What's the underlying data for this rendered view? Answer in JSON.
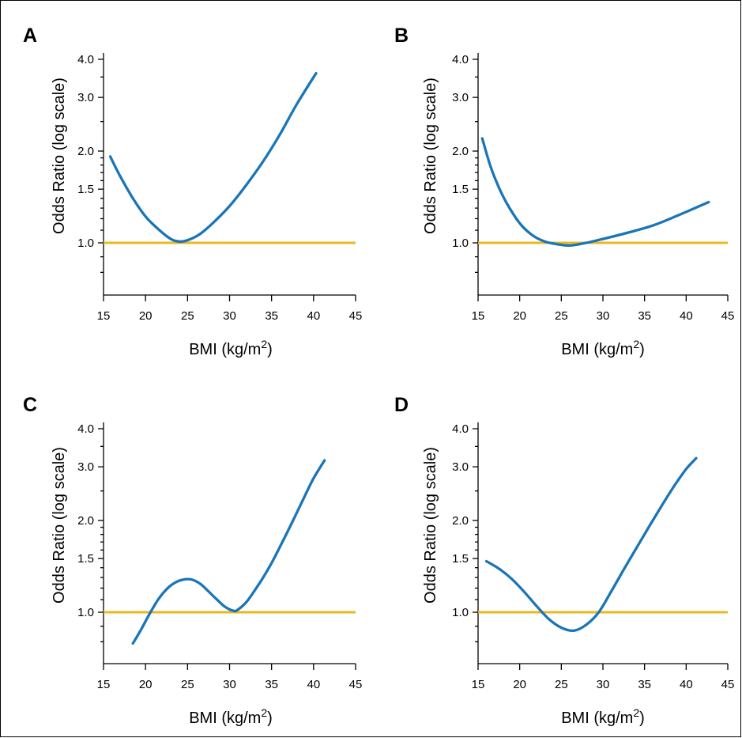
{
  "colors": {
    "curve": "#1a75b8",
    "reference": "#e8b920",
    "axis": "#000000"
  },
  "chart_data": [
    {
      "type": "line",
      "panel": "A",
      "xlabel": "BMI (kg/m2)",
      "ylabel": "Odds Ratio (log scale)",
      "xlim": [
        15,
        45
      ],
      "ylim": [
        0.7,
        4.1
      ],
      "y_scale": "log",
      "x_ticks": [
        15,
        20,
        25,
        30,
        35,
        40,
        45
      ],
      "y_ticks": [
        1.0,
        1.5,
        2.0,
        3.0,
        4.0
      ],
      "y_tick_labels": [
        "1.0",
        "1.5",
        "2.0",
        "3.0",
        "4.0"
      ],
      "reference_line": 1.0,
      "series": [
        {
          "x": [
            15.8,
            17,
            18.5,
            20,
            21.5,
            23,
            24,
            25,
            26.5,
            28,
            30,
            32,
            34,
            36,
            38,
            40.3
          ],
          "y": [
            1.92,
            1.65,
            1.4,
            1.22,
            1.11,
            1.03,
            1.01,
            1.02,
            1.07,
            1.16,
            1.32,
            1.55,
            1.85,
            2.27,
            2.85,
            3.6
          ]
        }
      ]
    },
    {
      "type": "line",
      "panel": "B",
      "xlabel": "BMI (kg/m2)",
      "ylabel": "Odds Ratio (log scale)",
      "xlim": [
        15,
        45
      ],
      "ylim": [
        0.7,
        4.1
      ],
      "y_scale": "log",
      "x_ticks": [
        15,
        20,
        25,
        30,
        35,
        40,
        45
      ],
      "y_ticks": [
        1.0,
        1.5,
        2.0,
        3.0,
        4.0
      ],
      "y_tick_labels": [
        "1.0",
        "1.5",
        "2.0",
        "3.0",
        "4.0"
      ],
      "reference_line": 1.0,
      "series": [
        {
          "x": [
            15.5,
            16.5,
            17.5,
            18.5,
            20,
            21.5,
            23,
            24.5,
            26,
            28,
            30,
            33,
            36,
            39,
            42.7
          ],
          "y": [
            2.2,
            1.78,
            1.52,
            1.34,
            1.16,
            1.06,
            1.01,
            0.99,
            0.98,
            1.0,
            1.03,
            1.08,
            1.14,
            1.23,
            1.36
          ]
        }
      ]
    },
    {
      "type": "line",
      "panel": "C",
      "xlabel": "BMI (kg/m2)",
      "ylabel": "Odds Ratio (log scale)",
      "xlim": [
        15,
        45
      ],
      "ylim": [
        0.7,
        4.1
      ],
      "y_scale": "log",
      "x_ticks": [
        15,
        20,
        25,
        30,
        35,
        40,
        45
      ],
      "y_ticks": [
        1.0,
        1.5,
        2.0,
        3.0,
        4.0
      ],
      "y_tick_labels": [
        "1.0",
        "1.5",
        "2.0",
        "3.0",
        "4.0"
      ],
      "reference_line": 1.0,
      "series": [
        {
          "x": [
            18.5,
            19.5,
            20.5,
            21.5,
            22.5,
            23.5,
            24.5,
            25.5,
            26.5,
            27.5,
            28.5,
            29.5,
            30.5,
            31,
            32,
            33,
            34,
            35,
            36,
            37,
            38,
            39,
            40,
            41.3
          ],
          "y": [
            0.79,
            0.88,
            0.99,
            1.1,
            1.19,
            1.25,
            1.28,
            1.28,
            1.24,
            1.17,
            1.1,
            1.04,
            1.01,
            1.02,
            1.08,
            1.18,
            1.3,
            1.45,
            1.64,
            1.86,
            2.12,
            2.42,
            2.75,
            3.15
          ]
        }
      ]
    },
    {
      "type": "line",
      "panel": "D",
      "xlabel": "BMI (kg/m2)",
      "ylabel": "Odds Ratio (log scale)",
      "xlim": [
        15,
        45
      ],
      "ylim": [
        0.7,
        4.1
      ],
      "y_scale": "log",
      "x_ticks": [
        15,
        20,
        25,
        30,
        35,
        40,
        45
      ],
      "y_ticks": [
        1.0,
        1.5,
        2.0,
        3.0,
        4.0
      ],
      "y_tick_labels": [
        "1.0",
        "1.5",
        "2.0",
        "3.0",
        "4.0"
      ],
      "reference_line": 1.0,
      "series": [
        {
          "x": [
            16,
            17.5,
            19,
            20.5,
            22,
            23.5,
            25,
            26.5,
            28,
            29.5,
            31,
            32.5,
            34,
            35.5,
            37,
            38.5,
            40,
            41.2
          ],
          "y": [
            1.47,
            1.39,
            1.29,
            1.17,
            1.05,
            0.95,
            0.89,
            0.87,
            0.91,
            1.0,
            1.17,
            1.38,
            1.62,
            1.9,
            2.22,
            2.58,
            2.95,
            3.2
          ]
        }
      ]
    }
  ]
}
